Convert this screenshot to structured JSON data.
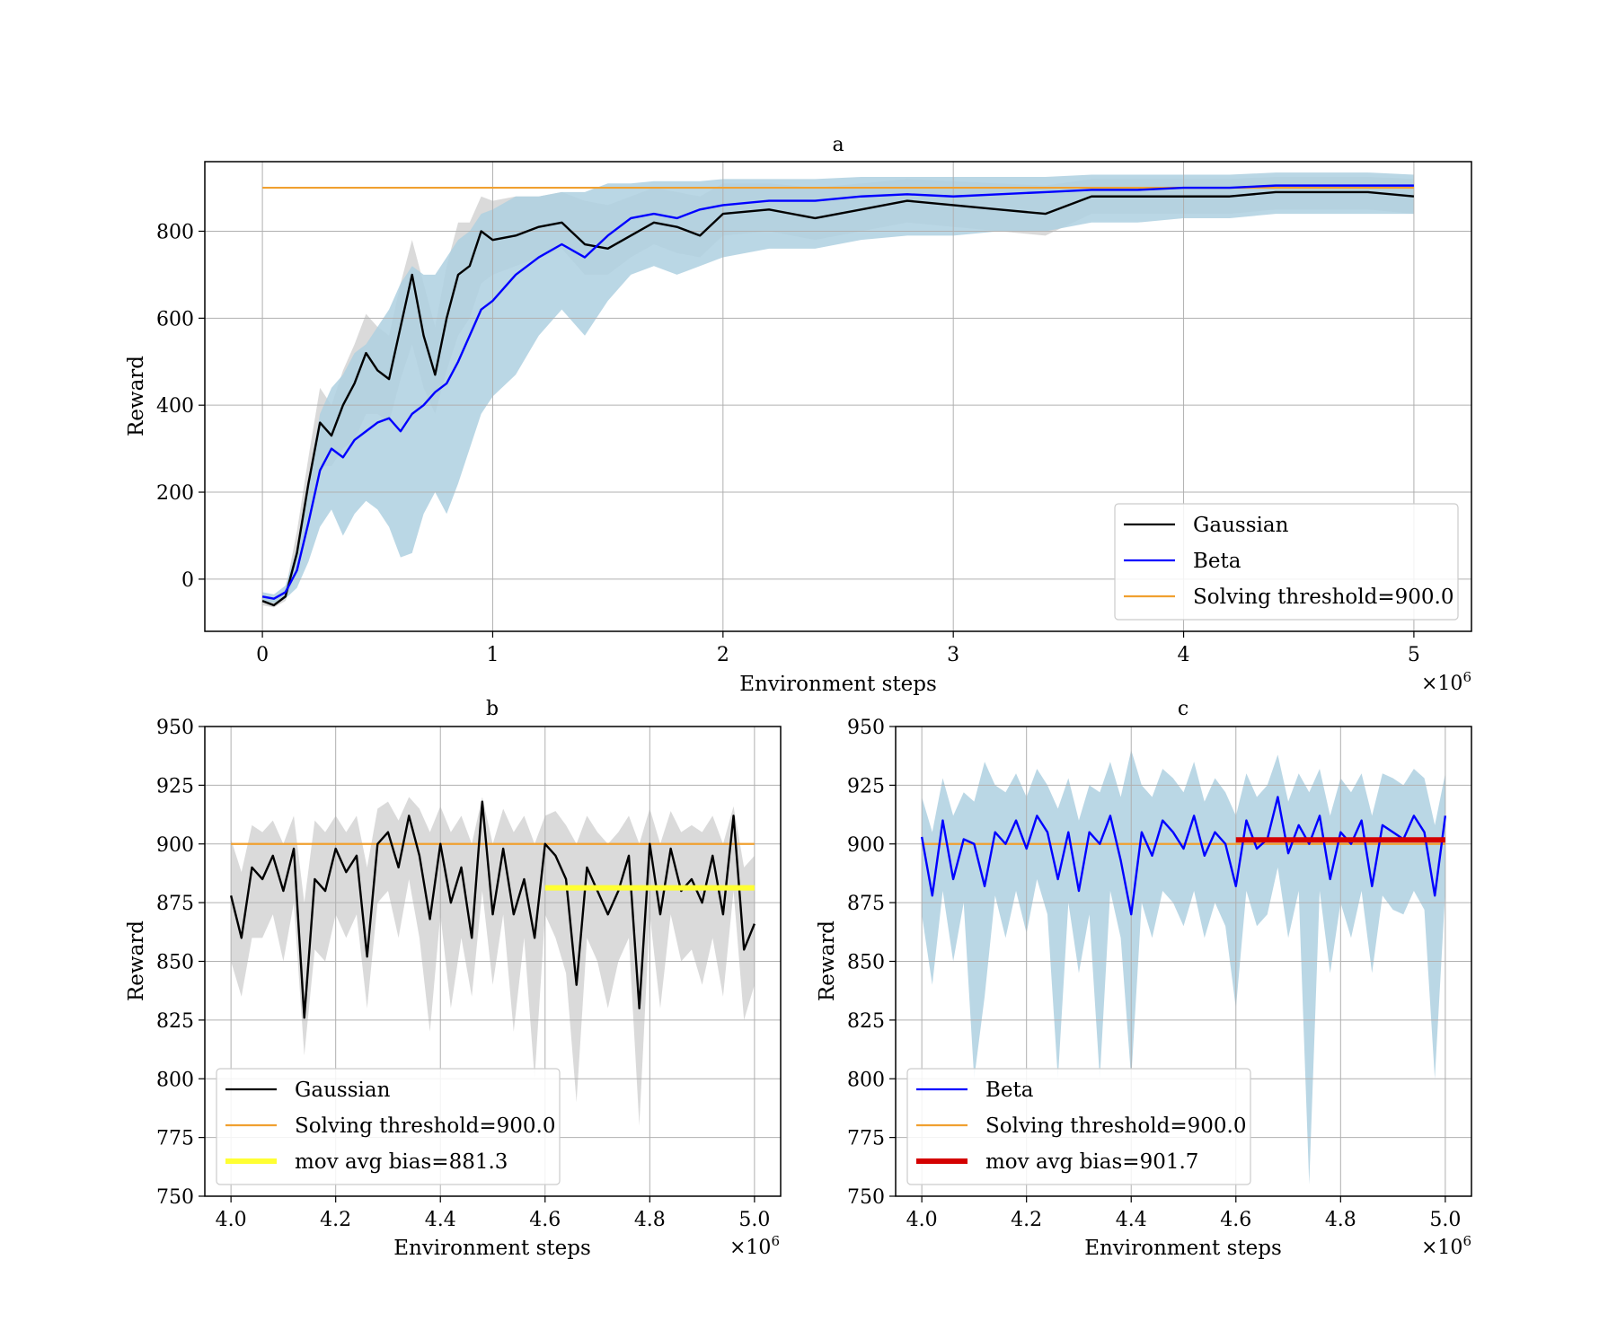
{
  "colors": {
    "gaussian": "#000000",
    "beta": "#0000ff",
    "threshold": "#f0a030",
    "gaussian_band": "#d3d3d3",
    "beta_band": "#aed0e0",
    "mov_avg_gaussian": "#ffff33",
    "mov_avg_beta": "#d40000",
    "grid": "#b0b0b0"
  },
  "chart_data": [
    {
      "panel": "a",
      "type": "line",
      "title": "a",
      "xlabel": "Environment steps",
      "ylabel": "Reward",
      "x_scale_label": "×10",
      "x_scale_exp": "6",
      "xlim": [
        -0.25,
        5.25
      ],
      "ylim": [
        -120,
        960
      ],
      "xticks": [
        0,
        1,
        2,
        3,
        4,
        5
      ],
      "xtick_labels": [
        "0",
        "1",
        "2",
        "3",
        "4",
        "5"
      ],
      "yticks": [
        0,
        200,
        400,
        600,
        800
      ],
      "ytick_labels": [
        "0",
        "200",
        "400",
        "600",
        "800"
      ],
      "grid": true,
      "legend_position": "lower-right",
      "x": [
        0,
        0.05,
        0.1,
        0.15,
        0.2,
        0.25,
        0.3,
        0.35,
        0.4,
        0.45,
        0.5,
        0.55,
        0.6,
        0.65,
        0.7,
        0.75,
        0.8,
        0.85,
        0.9,
        0.95,
        1.0,
        1.1,
        1.2,
        1.3,
        1.4,
        1.5,
        1.6,
        1.7,
        1.8,
        1.9,
        2.0,
        2.2,
        2.4,
        2.6,
        2.8,
        3.0,
        3.2,
        3.4,
        3.6,
        3.8,
        4.0,
        4.2,
        4.4,
        4.6,
        4.8,
        5.0
      ],
      "series": [
        {
          "name": "Gaussian",
          "role": "line",
          "values": [
            -50,
            -60,
            -40,
            60,
            220,
            360,
            330,
            400,
            450,
            520,
            480,
            460,
            580,
            700,
            560,
            470,
            600,
            700,
            720,
            800,
            780,
            790,
            810,
            820,
            770,
            760,
            790,
            820,
            810,
            790,
            840,
            850,
            830,
            850,
            870,
            860,
            850,
            840,
            880,
            880,
            880,
            880,
            890,
            890,
            890,
            880
          ]
        },
        {
          "name": "Beta",
          "role": "line",
          "values": [
            -40,
            -45,
            -30,
            20,
            130,
            250,
            300,
            280,
            320,
            340,
            360,
            370,
            340,
            380,
            400,
            430,
            450,
            500,
            560,
            620,
            640,
            700,
            740,
            770,
            740,
            790,
            830,
            840,
            830,
            850,
            860,
            870,
            870,
            880,
            885,
            880,
            885,
            890,
            895,
            895,
            900,
            900,
            905,
            905,
            905,
            905
          ]
        },
        {
          "name": "Solving threshold=900.0",
          "role": "threshold",
          "value": 900.0
        }
      ],
      "band_gaussian": {
        "lower": [
          -60,
          -65,
          -50,
          20,
          150,
          260,
          260,
          300,
          320,
          380,
          380,
          360,
          460,
          540,
          440,
          380,
          480,
          560,
          600,
          680,
          700,
          720,
          740,
          760,
          700,
          700,
          740,
          770,
          750,
          740,
          790,
          800,
          780,
          800,
          820,
          810,
          800,
          790,
          840,
          840,
          840,
          840,
          850,
          850,
          850,
          840
        ],
        "upper": [
          -40,
          -50,
          -25,
          110,
          280,
          440,
          400,
          480,
          540,
          610,
          580,
          560,
          680,
          780,
          680,
          580,
          720,
          820,
          820,
          880,
          870,
          880,
          880,
          890,
          870,
          860,
          880,
          900,
          890,
          880,
          910,
          910,
          900,
          910,
          920,
          915,
          910,
          905,
          920,
          920,
          920,
          920,
          925,
          925,
          925,
          920
        ]
      },
      "band_beta": {
        "lower": [
          -50,
          -55,
          -45,
          -20,
          40,
          120,
          160,
          100,
          150,
          180,
          160,
          120,
          50,
          60,
          150,
          200,
          150,
          220,
          300,
          380,
          420,
          470,
          560,
          620,
          560,
          640,
          700,
          720,
          700,
          720,
          740,
          760,
          760,
          780,
          790,
          790,
          800,
          800,
          820,
          820,
          830,
          830,
          840,
          840,
          840,
          840
        ],
        "upper": [
          -30,
          -35,
          -15,
          70,
          230,
          380,
          440,
          470,
          520,
          540,
          580,
          620,
          680,
          720,
          700,
          700,
          740,
          780,
          800,
          840,
          850,
          880,
          880,
          890,
          890,
          910,
          910,
          915,
          915,
          915,
          920,
          920,
          920,
          925,
          925,
          925,
          925,
          925,
          930,
          930,
          930,
          930,
          935,
          935,
          935,
          930
        ]
      }
    },
    {
      "panel": "b",
      "type": "line",
      "title": "b",
      "xlabel": "Environment steps",
      "ylabel": "Reward",
      "x_scale_label": "×10",
      "x_scale_exp": "6",
      "xlim": [
        3.95,
        5.05
      ],
      "ylim": [
        750,
        950
      ],
      "xticks": [
        4.0,
        4.2,
        4.4,
        4.6,
        4.8,
        5.0
      ],
      "xtick_labels": [
        "4.0",
        "4.2",
        "4.4",
        "4.6",
        "4.8",
        "5.0"
      ],
      "yticks": [
        750,
        775,
        800,
        825,
        850,
        875,
        900,
        925,
        950
      ],
      "ytick_labels": [
        "750",
        "775",
        "800",
        "825",
        "850",
        "875",
        "900",
        "925",
        "950"
      ],
      "grid": true,
      "legend_position": "lower-left",
      "x": [
        4.0,
        4.02,
        4.04,
        4.06,
        4.08,
        4.1,
        4.12,
        4.14,
        4.16,
        4.18,
        4.2,
        4.22,
        4.24,
        4.26,
        4.28,
        4.3,
        4.32,
        4.34,
        4.36,
        4.38,
        4.4,
        4.42,
        4.44,
        4.46,
        4.48,
        4.5,
        4.52,
        4.54,
        4.56,
        4.58,
        4.6,
        4.62,
        4.64,
        4.66,
        4.68,
        4.7,
        4.72,
        4.74,
        4.76,
        4.78,
        4.8,
        4.82,
        4.84,
        4.86,
        4.88,
        4.9,
        4.92,
        4.94,
        4.96,
        4.98,
        5.0
      ],
      "series": [
        {
          "name": "Gaussian",
          "role": "line",
          "values": [
            878,
            860,
            890,
            885,
            895,
            880,
            898,
            826,
            885,
            880,
            898,
            888,
            895,
            852,
            900,
            905,
            890,
            912,
            895,
            868,
            900,
            875,
            890,
            860,
            918,
            870,
            898,
            870,
            885,
            860,
            900,
            895,
            885,
            840,
            890,
            880,
            870,
            880,
            895,
            830,
            900,
            870,
            898,
            880,
            885,
            875,
            895,
            870,
            912,
            855,
            866
          ]
        },
        {
          "name": "Solving threshold=900.0",
          "role": "threshold",
          "value": 900.0
        },
        {
          "name": "mov avg bias=881.3",
          "role": "mov_avg",
          "value": 881.3,
          "x_start": 4.6,
          "x_end": 5.0
        }
      ],
      "band": {
        "lower": [
          850,
          835,
          860,
          860,
          870,
          850,
          875,
          810,
          855,
          850,
          870,
          860,
          870,
          830,
          875,
          880,
          860,
          885,
          860,
          820,
          870,
          830,
          860,
          835,
          880,
          840,
          870,
          820,
          860,
          800,
          870,
          860,
          845,
          790,
          860,
          850,
          830,
          850,
          860,
          780,
          870,
          830,
          870,
          850,
          855,
          840,
          860,
          835,
          880,
          825,
          840
        ],
        "upper": [
          902,
          888,
          908,
          905,
          910,
          900,
          912,
          875,
          910,
          905,
          912,
          905,
          912,
          890,
          915,
          918,
          910,
          920,
          915,
          905,
          916,
          905,
          912,
          900,
          920,
          900,
          915,
          905,
          912,
          900,
          912,
          914,
          908,
          900,
          912,
          905,
          900,
          905,
          912,
          900,
          915,
          900,
          914,
          905,
          908,
          905,
          912,
          900,
          916,
          890,
          895
        ]
      }
    },
    {
      "panel": "c",
      "type": "line",
      "title": "c",
      "xlabel": "Environment steps",
      "ylabel": "Reward",
      "x_scale_label": "×10",
      "x_scale_exp": "6",
      "xlim": [
        3.95,
        5.05
      ],
      "ylim": [
        750,
        950
      ],
      "xticks": [
        4.0,
        4.2,
        4.4,
        4.6,
        4.8,
        5.0
      ],
      "xtick_labels": [
        "4.0",
        "4.2",
        "4.4",
        "4.6",
        "4.8",
        "5.0"
      ],
      "yticks": [
        750,
        775,
        800,
        825,
        850,
        875,
        900,
        925,
        950
      ],
      "ytick_labels": [
        "750",
        "775",
        "800",
        "825",
        "850",
        "875",
        "900",
        "925",
        "950"
      ],
      "grid": true,
      "legend_position": "lower-left",
      "x": [
        4.0,
        4.02,
        4.04,
        4.06,
        4.08,
        4.1,
        4.12,
        4.14,
        4.16,
        4.18,
        4.2,
        4.22,
        4.24,
        4.26,
        4.28,
        4.3,
        4.32,
        4.34,
        4.36,
        4.38,
        4.4,
        4.42,
        4.44,
        4.46,
        4.48,
        4.5,
        4.52,
        4.54,
        4.56,
        4.58,
        4.6,
        4.62,
        4.64,
        4.66,
        4.68,
        4.7,
        4.72,
        4.74,
        4.76,
        4.78,
        4.8,
        4.82,
        4.84,
        4.86,
        4.88,
        4.9,
        4.92,
        4.94,
        4.96,
        4.98,
        5.0
      ],
      "series": [
        {
          "name": "Beta",
          "role": "line",
          "values": [
            903,
            878,
            910,
            885,
            902,
            900,
            882,
            905,
            900,
            910,
            898,
            912,
            905,
            885,
            905,
            880,
            905,
            900,
            912,
            893,
            870,
            905,
            895,
            910,
            905,
            898,
            912,
            895,
            905,
            900,
            882,
            910,
            898,
            902,
            920,
            896,
            908,
            900,
            912,
            885,
            905,
            900,
            910,
            882,
            908,
            905,
            902,
            912,
            905,
            878,
            912
          ]
        },
        {
          "name": "Solving threshold=900.0",
          "role": "threshold",
          "value": 900.0
        },
        {
          "name": "mov avg bias=901.7",
          "role": "mov_avg",
          "value": 901.7,
          "x_start": 4.6,
          "x_end": 5.0
        }
      ],
      "band": {
        "lower": [
          870,
          840,
          880,
          850,
          875,
          800,
          835,
          878,
          860,
          880,
          862,
          885,
          870,
          800,
          875,
          845,
          870,
          800,
          880,
          860,
          800,
          875,
          860,
          880,
          875,
          865,
          880,
          860,
          875,
          865,
          830,
          880,
          865,
          870,
          890,
          860,
          880,
          755,
          880,
          845,
          875,
          860,
          880,
          845,
          878,
          872,
          870,
          880,
          872,
          800,
          880
        ],
        "upper": [
          920,
          905,
          928,
          912,
          922,
          918,
          935,
          925,
          922,
          930,
          920,
          932,
          925,
          915,
          928,
          910,
          925,
          922,
          935,
          920,
          940,
          925,
          920,
          932,
          928,
          922,
          935,
          918,
          928,
          922,
          912,
          930,
          920,
          925,
          938,
          918,
          930,
          922,
          932,
          912,
          928,
          922,
          930,
          912,
          930,
          928,
          925,
          932,
          928,
          908,
          930
        ]
      }
    }
  ]
}
